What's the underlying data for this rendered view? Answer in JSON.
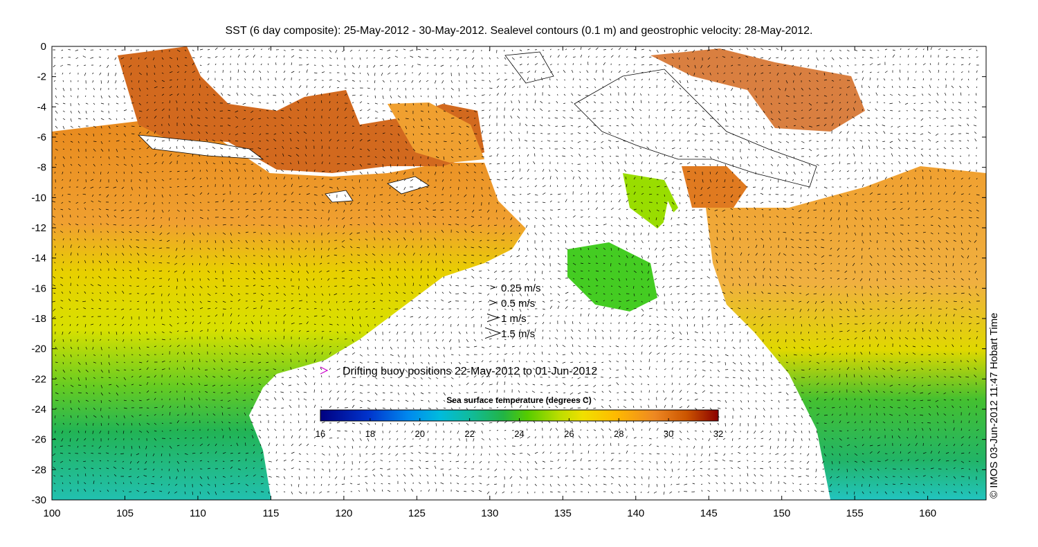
{
  "title": "SST (6 day composite): 25-May-2012 - 30-May-2012. Sealevel contours (0.1 m) and geostrophic velocity: 28-May-2012.",
  "credit": "© IMOS 03-Jun-2012 11:47 Hobart Time",
  "chart_data": {
    "type": "heatmap",
    "x_axis": {
      "ticks": [
        100,
        105,
        110,
        115,
        120,
        125,
        130,
        135,
        140,
        145,
        150,
        155,
        160
      ],
      "range": [
        100,
        164
      ]
    },
    "y_axis": {
      "ticks": [
        0,
        -2,
        -4,
        -6,
        -8,
        -10,
        -12,
        -14,
        -16,
        -18,
        -20,
        -22,
        -24,
        -26,
        -28,
        -30
      ],
      "range": [
        -30,
        0
      ]
    },
    "colorbar": {
      "title": "Sea surface temperature (degrees C)",
      "ticks": [
        16,
        18,
        20,
        22,
        24,
        26,
        28,
        30,
        32
      ],
      "range": [
        16,
        32
      ],
      "colors": [
        "#000080",
        "#0033cc",
        "#0077ee",
        "#00aaee",
        "#00cccc",
        "#11bb88",
        "#22b444",
        "#44cc00",
        "#99dd00",
        "#e6e600",
        "#ffcc00",
        "#f5a623",
        "#e87f1a",
        "#cc5500",
        "#aa2200",
        "#880000"
      ]
    },
    "velocity_legend": [
      {
        "label": "0.25 m/s",
        "speed": 0.25
      },
      {
        "label": "0.5 m/s",
        "speed": 0.5
      },
      {
        "label": "1 m/s",
        "speed": 1.0
      },
      {
        "label": "1.5 m/s",
        "speed": 1.5
      }
    ],
    "buoy_legend": {
      "label": "Drifting buoy positions 22-May-2012 to 01-Jun-2012",
      "color": "#cc00cc"
    }
  }
}
